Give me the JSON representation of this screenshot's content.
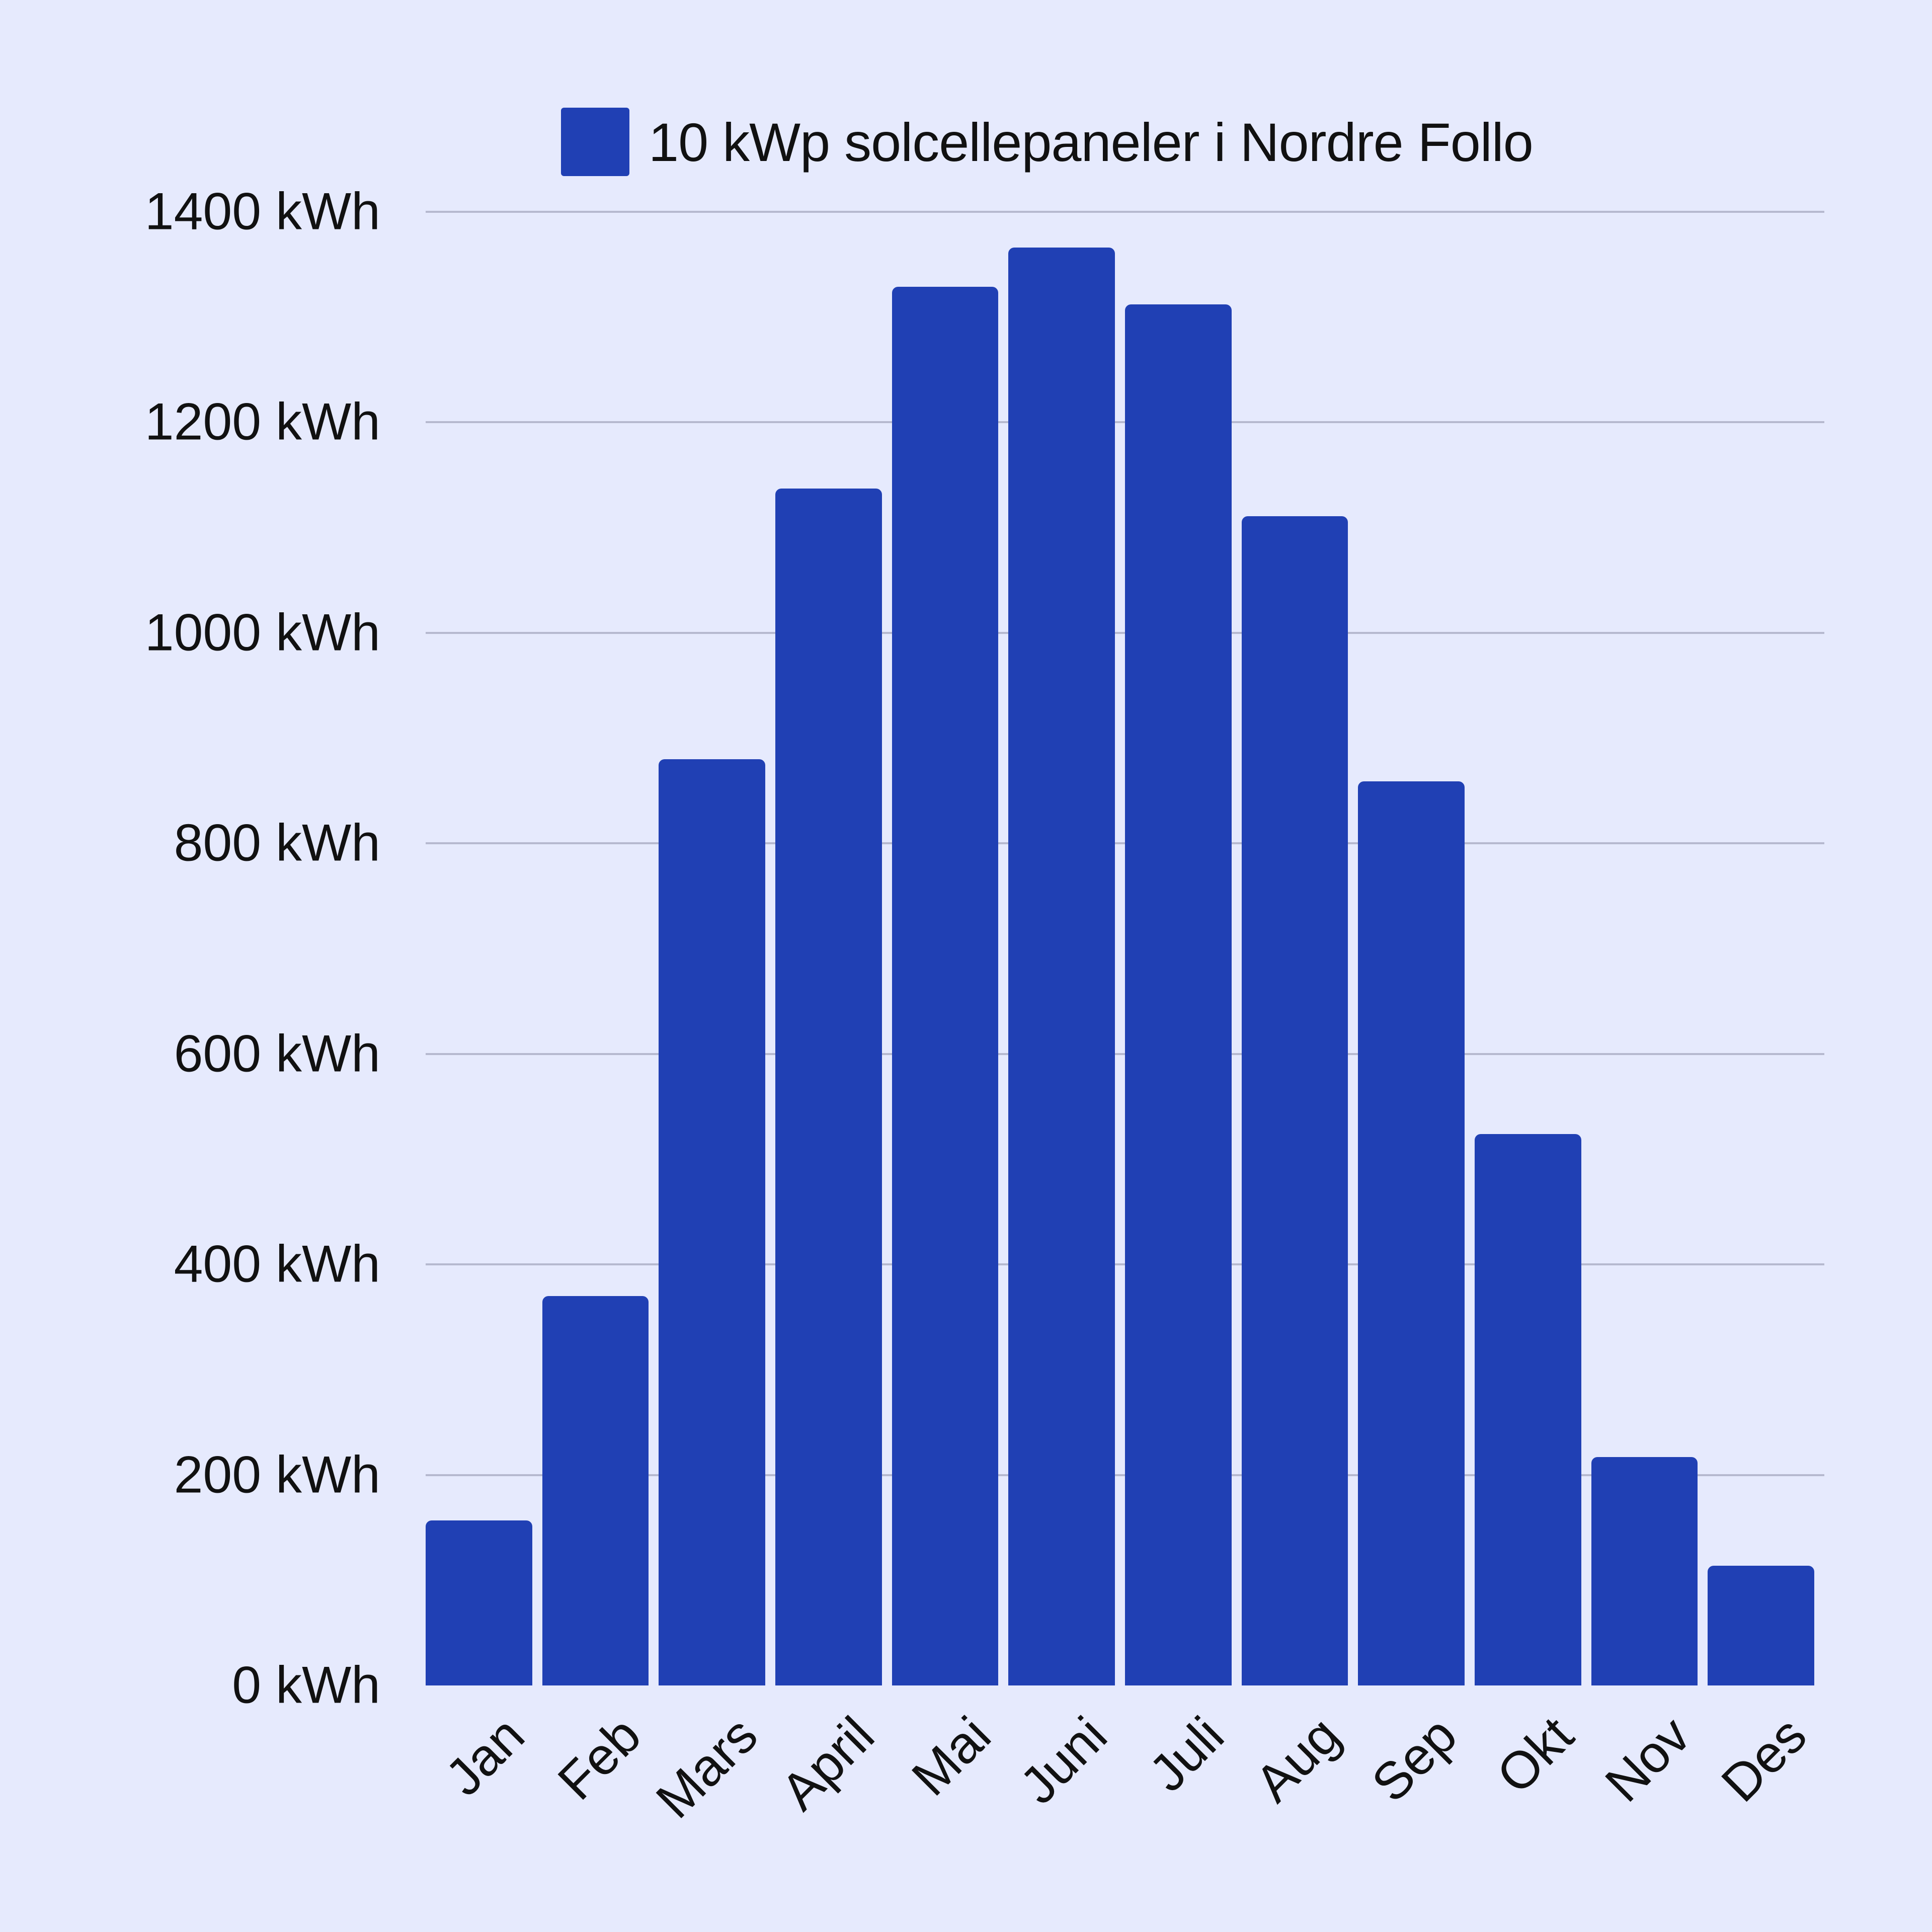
{
  "chart_data": {
    "type": "bar",
    "title": "",
    "xlabel": "",
    "ylabel": "",
    "categories": [
      "Jan",
      "Feb",
      "Mars",
      "April",
      "Mai",
      "Juni",
      "Juli",
      "Aug",
      "Sep",
      "Okt",
      "Nov",
      "Des"
    ],
    "series": [
      {
        "name": "10 kWp solcellepaneler i Nordre Follo",
        "color": "#2040b4",
        "values": [
          157,
          370,
          880,
          1137,
          1329,
          1366,
          1312,
          1111,
          859,
          524,
          217,
          114
        ]
      }
    ],
    "ylim": [
      0,
      1400
    ],
    "yticks": [
      0,
      200,
      400,
      600,
      800,
      1000,
      1200,
      1400
    ],
    "ytick_labels": [
      "0 kWh",
      "200 kWh",
      "400 kWh",
      "600 kWh",
      "800 kWh",
      "1000 kWh",
      "1200 kWh",
      "1400 kWh"
    ],
    "grid": true,
    "legend_position": "top",
    "x_label_rotation": -45
  },
  "legend": {
    "label": "10 kWp solcellepaneler i Nordre Follo",
    "color": "#2040b4"
  },
  "colors": {
    "background": "#e6eafd",
    "bar": "#2040b4",
    "grid": "#b6b9cf"
  }
}
